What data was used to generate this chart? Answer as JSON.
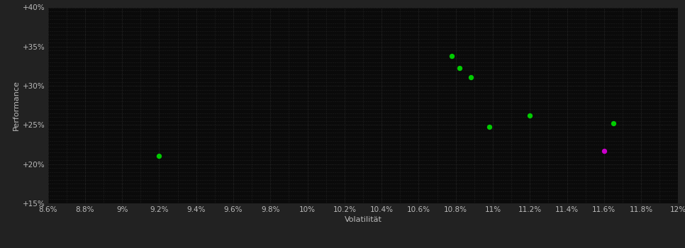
{
  "background_color": "#222222",
  "plot_bg_color": "#0a0a0a",
  "grid_color": "#333333",
  "text_color": "#bbbbbb",
  "xlabel": "Volatilität",
  "ylabel": "Performance",
  "xlim": [
    0.086,
    0.12
  ],
  "ylim": [
    0.15,
    0.4
  ],
  "xticks": [
    0.086,
    0.088,
    0.09,
    0.092,
    0.094,
    0.096,
    0.098,
    0.1,
    0.102,
    0.104,
    0.106,
    0.108,
    0.11,
    0.112,
    0.114,
    0.116,
    0.118,
    0.12
  ],
  "yticks": [
    0.15,
    0.2,
    0.25,
    0.3,
    0.35,
    0.4
  ],
  "minor_yticks": [
    0.15,
    0.155,
    0.16,
    0.165,
    0.17,
    0.175,
    0.18,
    0.185,
    0.19,
    0.195,
    0.2,
    0.205,
    0.21,
    0.215,
    0.22,
    0.225,
    0.23,
    0.235,
    0.24,
    0.245,
    0.25,
    0.255,
    0.26,
    0.265,
    0.27,
    0.275,
    0.28,
    0.285,
    0.29,
    0.295,
    0.3,
    0.305,
    0.31,
    0.315,
    0.32,
    0.325,
    0.33,
    0.335,
    0.34,
    0.345,
    0.35,
    0.355,
    0.36,
    0.365,
    0.37,
    0.375,
    0.38,
    0.385,
    0.39,
    0.395,
    0.4
  ],
  "green_points": [
    [
      0.092,
      0.211
    ],
    [
      0.1078,
      0.338
    ],
    [
      0.1082,
      0.323
    ],
    [
      0.1088,
      0.311
    ],
    [
      0.1098,
      0.248
    ],
    [
      0.112,
      0.262
    ],
    [
      0.1165,
      0.252
    ]
  ],
  "magenta_points": [
    [
      0.116,
      0.217
    ]
  ],
  "green_color": "#00cc00",
  "magenta_color": "#cc00cc",
  "marker_size": 28
}
